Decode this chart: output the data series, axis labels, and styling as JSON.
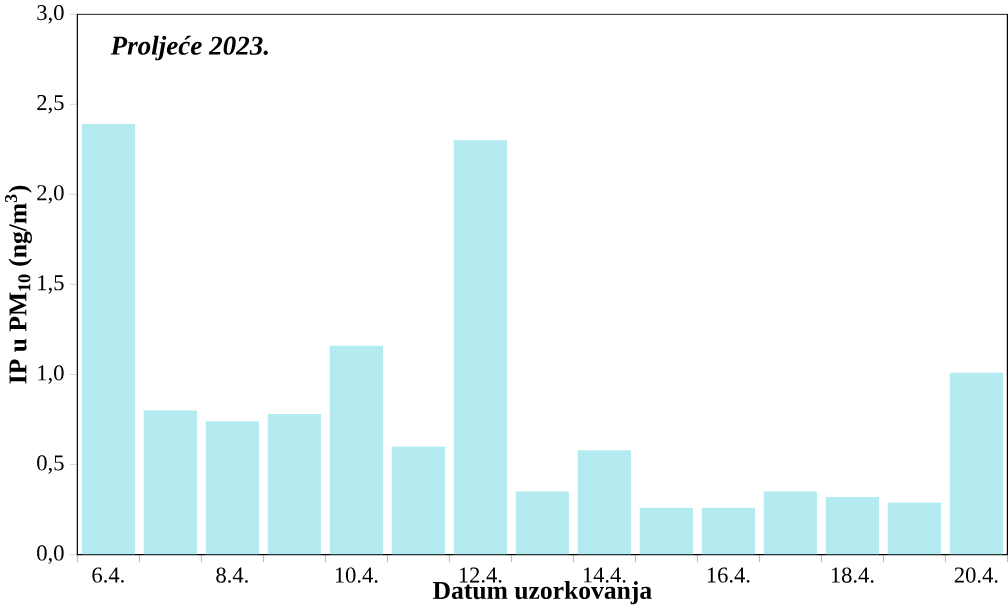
{
  "chart_data": {
    "type": "bar",
    "title": "Proljeće 2023.",
    "xlabel": "Datum uzorkovanja",
    "ylabel": "IP u PM$_{10}$ (ng/m$^{3}$)",
    "categories": [
      "6.4.",
      null,
      "8.4.",
      null,
      "10.4.",
      null,
      "12.4.",
      null,
      "14.4.",
      null,
      "16.4.",
      null,
      "18.4.",
      null,
      "20.4."
    ],
    "values": [
      2.39,
      0.8,
      0.74,
      0.78,
      1.16,
      0.6,
      2.3,
      0.35,
      0.58,
      0.26,
      0.26,
      0.35,
      0.32,
      0.29,
      1.01
    ],
    "color": "#b3ebf0",
    "ylim": [
      0,
      3
    ],
    "yticks": [
      {
        "value": 0,
        "label": "0,0"
      },
      {
        "value": 0.5,
        "label": "0,5"
      },
      {
        "value": 1,
        "label": "1,0"
      },
      {
        "value": 1.5,
        "label": "1,5"
      },
      {
        "value": 2,
        "label": "2,0"
      },
      {
        "value": 2.5,
        "label": "2,5"
      },
      {
        "value": 3,
        "label": "3,0"
      }
    ],
    "grid": false
  }
}
